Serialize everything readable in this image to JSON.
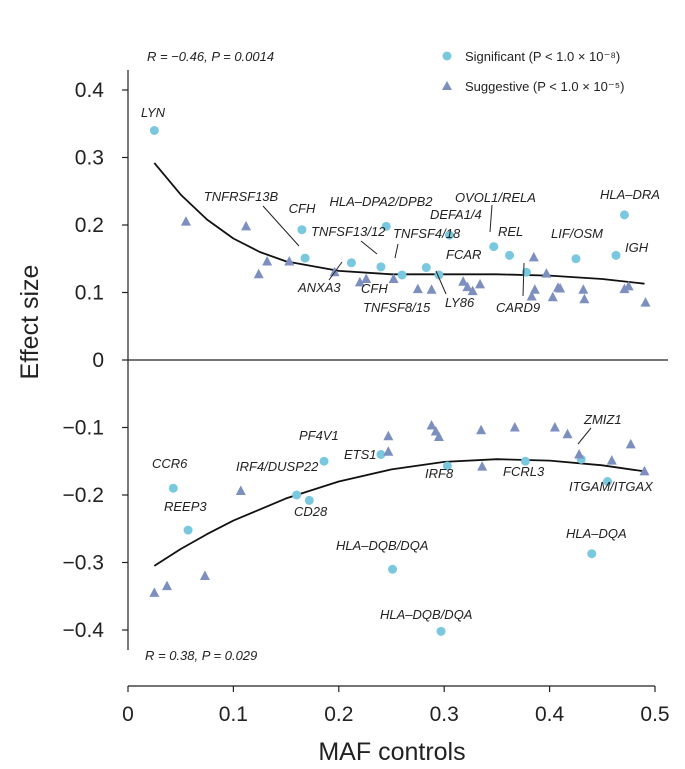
{
  "chart_data": {
    "type": "scatter",
    "xlabel": "MAF controls",
    "ylabel": "Effect size",
    "xlim": [
      0,
      0.5
    ],
    "ylim": [
      -0.45,
      0.4
    ],
    "x_ticks": [
      0,
      0.1,
      0.2,
      0.3,
      0.4,
      0.5
    ],
    "x_tick_labels": [
      "0",
      "0.1",
      "0.2",
      "0.3",
      "0.4",
      "0.5"
    ],
    "y_ticks": [
      0.4,
      0.3,
      0.2,
      0.1,
      0,
      -0.1,
      -0.2,
      -0.3,
      -0.4
    ],
    "y_tick_labels": [
      "0.4",
      "0.3",
      "0.2",
      "0.1",
      "0",
      "−0.1",
      "−0.2",
      "−0.3",
      "−0.4"
    ],
    "reference_line_y": 0,
    "stats": {
      "upper": "R = −0.46, P = 0.0014",
      "lower": "R = 0.38, P = 0.029"
    },
    "legend": [
      {
        "name": "Significant (P < 1.0 × 10⁻⁸)",
        "marker": "circle",
        "color": "#79c8df"
      },
      {
        "name": "Suggestive (P < 1.0 × 10⁻⁵)",
        "marker": "triangle",
        "color": "#7d8fbf"
      }
    ],
    "series": [
      {
        "name": "Significant",
        "marker": "circle",
        "points": [
          {
            "x": 0.025,
            "y": 0.34
          },
          {
            "x": 0.165,
            "y": 0.193
          },
          {
            "x": 0.168,
            "y": 0.151
          },
          {
            "x": 0.245,
            "y": 0.198
          },
          {
            "x": 0.212,
            "y": 0.144
          },
          {
            "x": 0.24,
            "y": 0.138
          },
          {
            "x": 0.26,
            "y": 0.126
          },
          {
            "x": 0.283,
            "y": 0.137
          },
          {
            "x": 0.295,
            "y": 0.126
          },
          {
            "x": 0.305,
            "y": 0.185
          },
          {
            "x": 0.347,
            "y": 0.168
          },
          {
            "x": 0.362,
            "y": 0.155
          },
          {
            "x": 0.378,
            "y": 0.13
          },
          {
            "x": 0.425,
            "y": 0.15
          },
          {
            "x": 0.463,
            "y": 0.155
          },
          {
            "x": 0.471,
            "y": 0.215
          },
          {
            "x": 0.043,
            "y": -0.19
          },
          {
            "x": 0.057,
            "y": -0.252
          },
          {
            "x": 0.16,
            "y": -0.2
          },
          {
            "x": 0.172,
            "y": -0.208
          },
          {
            "x": 0.186,
            "y": -0.15
          },
          {
            "x": 0.24,
            "y": -0.14
          },
          {
            "x": 0.303,
            "y": -0.157
          },
          {
            "x": 0.377,
            "y": -0.15
          },
          {
            "x": 0.43,
            "y": -0.147
          },
          {
            "x": 0.455,
            "y": -0.18
          },
          {
            "x": 0.44,
            "y": -0.287
          },
          {
            "x": 0.251,
            "y": -0.31
          },
          {
            "x": 0.297,
            "y": -0.402
          }
        ]
      },
      {
        "name": "Suggestive",
        "marker": "triangle",
        "points": [
          {
            "x": 0.055,
            "y": 0.205
          },
          {
            "x": 0.112,
            "y": 0.198
          },
          {
            "x": 0.124,
            "y": 0.127
          },
          {
            "x": 0.132,
            "y": 0.146
          },
          {
            "x": 0.153,
            "y": 0.146
          },
          {
            "x": 0.196,
            "y": 0.13
          },
          {
            "x": 0.22,
            "y": 0.115
          },
          {
            "x": 0.226,
            "y": 0.12
          },
          {
            "x": 0.252,
            "y": 0.12
          },
          {
            "x": 0.275,
            "y": 0.105
          },
          {
            "x": 0.288,
            "y": 0.104
          },
          {
            "x": 0.318,
            "y": 0.116
          },
          {
            "x": 0.322,
            "y": 0.108
          },
          {
            "x": 0.327,
            "y": 0.102
          },
          {
            "x": 0.334,
            "y": 0.112
          },
          {
            "x": 0.383,
            "y": 0.094
          },
          {
            "x": 0.386,
            "y": 0.104
          },
          {
            "x": 0.385,
            "y": 0.152
          },
          {
            "x": 0.397,
            "y": 0.128
          },
          {
            "x": 0.403,
            "y": 0.093
          },
          {
            "x": 0.408,
            "y": 0.107
          },
          {
            "x": 0.41,
            "y": 0.106
          },
          {
            "x": 0.432,
            "y": 0.104
          },
          {
            "x": 0.433,
            "y": 0.09
          },
          {
            "x": 0.471,
            "y": 0.105
          },
          {
            "x": 0.475,
            "y": 0.109
          },
          {
            "x": 0.491,
            "y": 0.085
          },
          {
            "x": 0.025,
            "y": -0.345
          },
          {
            "x": 0.037,
            "y": -0.335
          },
          {
            "x": 0.073,
            "y": -0.32
          },
          {
            "x": 0.107,
            "y": -0.194
          },
          {
            "x": 0.247,
            "y": -0.113
          },
          {
            "x": 0.247,
            "y": -0.136
          },
          {
            "x": 0.288,
            "y": -0.097
          },
          {
            "x": 0.292,
            "y": -0.106
          },
          {
            "x": 0.295,
            "y": -0.114
          },
          {
            "x": 0.335,
            "y": -0.104
          },
          {
            "x": 0.336,
            "y": -0.158
          },
          {
            "x": 0.367,
            "y": -0.1
          },
          {
            "x": 0.405,
            "y": -0.1
          },
          {
            "x": 0.417,
            "y": -0.11
          },
          {
            "x": 0.428,
            "y": -0.14
          },
          {
            "x": 0.459,
            "y": -0.149
          },
          {
            "x": 0.477,
            "y": -0.125
          },
          {
            "x": 0.49,
            "y": -0.165
          }
        ]
      }
    ],
    "fit_lines": [
      {
        "name": "upper fit",
        "x": [
          0.025,
          0.05,
          0.075,
          0.1,
          0.125,
          0.15,
          0.2,
          0.25,
          0.3,
          0.35,
          0.4,
          0.45,
          0.49
        ],
        "y": [
          0.292,
          0.245,
          0.208,
          0.18,
          0.16,
          0.146,
          0.132,
          0.127,
          0.127,
          0.127,
          0.125,
          0.12,
          0.113
        ]
      },
      {
        "name": "lower fit",
        "x": [
          0.025,
          0.05,
          0.075,
          0.1,
          0.15,
          0.2,
          0.25,
          0.3,
          0.35,
          0.4,
          0.45,
          0.49
        ],
        "y": [
          -0.305,
          -0.28,
          -0.258,
          -0.238,
          -0.205,
          -0.18,
          -0.162,
          -0.151,
          -0.147,
          -0.149,
          -0.156,
          -0.165
        ]
      }
    ],
    "annotations": [
      {
        "text": "LYN",
        "x": 0.025,
        "y": 0.34
      },
      {
        "text": "TNFRSF13B",
        "x": 0.168,
        "y": 0.151
      },
      {
        "text": "CFH",
        "x": 0.165,
        "y": 0.193
      },
      {
        "text": "HLA–DPA2/DPB2",
        "x": 0.245,
        "y": 0.198
      },
      {
        "text": "TNFSF13/12",
        "x": 0.24,
        "y": 0.138
      },
      {
        "text": "TNFSF4/18",
        "x": 0.283,
        "y": 0.137
      },
      {
        "text": "DEFA1/4",
        "x": 0.305,
        "y": 0.185
      },
      {
        "text": "OVOL1/RELA",
        "x": 0.347,
        "y": 0.168
      },
      {
        "text": "REL",
        "x": 0.362,
        "y": 0.155
      },
      {
        "text": "FCAR",
        "x": 0.295,
        "y": 0.126
      },
      {
        "text": "LIF/OSM",
        "x": 0.425,
        "y": 0.15
      },
      {
        "text": "HLA–DRA",
        "x": 0.471,
        "y": 0.215
      },
      {
        "text": "IGH",
        "x": 0.463,
        "y": 0.155
      },
      {
        "text": "ANXA3",
        "x": 0.212,
        "y": 0.144
      },
      {
        "text": "CFH",
        "x": 0.26,
        "y": 0.126
      },
      {
        "text": "TNFSF8/15",
        "x": 0.26,
        "y": 0.126
      },
      {
        "text": "LY86",
        "x": 0.295,
        "y": 0.126
      },
      {
        "text": "CARD9",
        "x": 0.378,
        "y": 0.13
      },
      {
        "text": "PF4V1",
        "x": 0.186,
        "y": -0.15
      },
      {
        "text": "ETS1",
        "x": 0.24,
        "y": -0.14
      },
      {
        "text": "IRF4/DUSP22",
        "x": 0.16,
        "y": -0.2
      },
      {
        "text": "CD28",
        "x": 0.172,
        "y": -0.208
      },
      {
        "text": "IRF8",
        "x": 0.303,
        "y": -0.157
      },
      {
        "text": "FCRL3",
        "x": 0.377,
        "y": -0.15
      },
      {
        "text": "ZMIZ1",
        "x": 0.43,
        "y": -0.147
      },
      {
        "text": "ITGAM/ITGAX",
        "x": 0.455,
        "y": -0.18
      },
      {
        "text": "CCR6",
        "x": 0.043,
        "y": -0.19
      },
      {
        "text": "REEP3",
        "x": 0.057,
        "y": -0.252
      },
      {
        "text": "HLA–DQB/DQA",
        "x": 0.251,
        "y": -0.31
      },
      {
        "text": "HLA–DQA",
        "x": 0.44,
        "y": -0.287
      },
      {
        "text": "HLA–DQB/DQA",
        "x": 0.297,
        "y": -0.402
      }
    ]
  }
}
